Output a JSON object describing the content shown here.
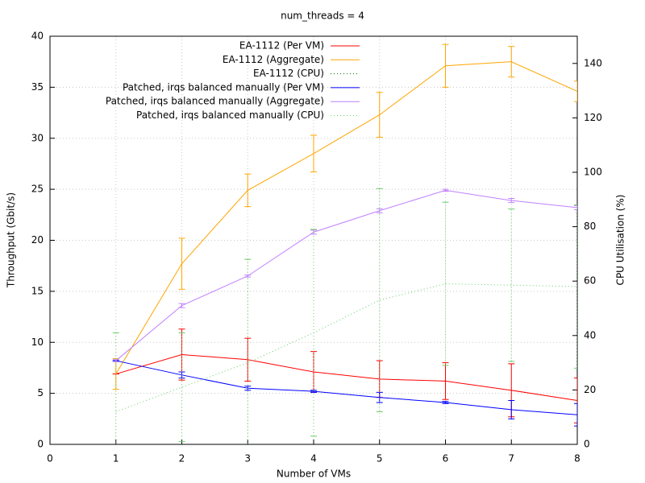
{
  "chart_data": {
    "type": "line",
    "title": "num_threads = 4",
    "xlabel": "Number of VMs",
    "ylabel": "Throughput (Gbit/s)",
    "y2label": "CPU Utilisation (%)",
    "x": [
      1,
      2,
      3,
      4,
      5,
      6,
      7,
      8
    ],
    "xlim": [
      0,
      8
    ],
    "xticks": [
      0,
      1,
      2,
      3,
      4,
      5,
      6,
      7,
      8
    ],
    "ylim": [
      0,
      40
    ],
    "yticks": [
      0,
      5,
      10,
      15,
      20,
      25,
      30,
      35,
      40
    ],
    "y2lim": [
      0,
      150
    ],
    "y2ticks": [
      0,
      20,
      40,
      60,
      80,
      100,
      120,
      140
    ],
    "grid": true,
    "legend": "top right",
    "series": [
      {
        "name": "EA-1112 (Per VM)",
        "color": "#ff0000",
        "values": [
          6.9,
          8.8,
          8.3,
          7.1,
          6.4,
          6.2,
          5.3,
          4.3
        ],
        "errors": [
          0,
          2.5,
          2.1,
          2.0,
          1.8,
          1.8,
          2.6,
          2.2
        ]
      },
      {
        "name": "EA-1112 (Aggregate)",
        "color": "#ffa500",
        "values": [
          6.9,
          17.7,
          24.9,
          28.5,
          32.3,
          37.1,
          37.5,
          34.6
        ],
        "errors": [
          1.5,
          2.5,
          1.6,
          1.8,
          2.2,
          2.1,
          1.5,
          1.0
        ]
      },
      {
        "name": "EA-1112 (CPU)",
        "color": "#006400",
        "axis": "y2",
        "dashed": true,
        "values": [
          null,
          null,
          null,
          null,
          null,
          null,
          null,
          null
        ]
      },
      {
        "name": "Patched, irqs balanced manually (Per VM)",
        "color": "#0000ff",
        "values": [
          8.2,
          6.8,
          5.5,
          5.2,
          4.6,
          4.1,
          3.4,
          2.9
        ],
        "errors": [
          0,
          0.3,
          0.2,
          0.1,
          0.5,
          0.1,
          0.9,
          1.1
        ]
      },
      {
        "name": "Patched, irqs balanced manually (Aggregate)",
        "color": "#c080ff",
        "values": [
          8.2,
          13.6,
          16.5,
          20.8,
          22.9,
          24.9,
          23.9,
          23.2
        ],
        "errors": [
          0.1,
          0.2,
          0.1,
          0.2,
          0.2,
          0.1,
          0.2,
          0.2
        ]
      },
      {
        "name": "Patched, irqs balanced manually (CPU)",
        "color": "#66cc66",
        "axis": "y2",
        "dashed": true,
        "values": [
          12,
          21,
          30,
          41,
          53,
          59,
          58.5,
          58
        ],
        "errors": [
          29,
          20,
          38,
          38,
          41,
          30,
          28,
          30
        ]
      }
    ]
  }
}
